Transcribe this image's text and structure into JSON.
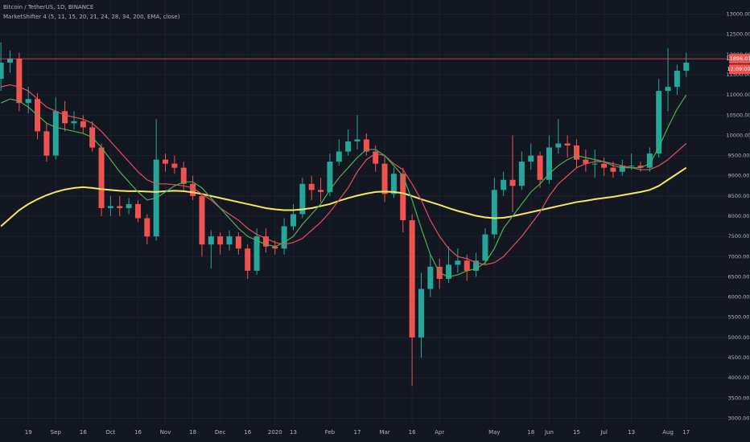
{
  "chart_data": {
    "type": "candlestick",
    "title": "Bitcoin / TetherUS, 1D, BINANCE",
    "subtitle": "MarketShifter 4 (5, 11, 15, 20, 21, 24, 28, 34, 200, EMA, close)",
    "categories": [
      null,
      null,
      null,
      "19",
      null,
      null,
      "Sep",
      null,
      null,
      "16",
      null,
      null,
      "Oct",
      null,
      null,
      "16",
      null,
      null,
      "Nov",
      null,
      null,
      "18",
      null,
      null,
      "Dec",
      null,
      null,
      "16",
      null,
      null,
      "2020",
      null,
      "13",
      null,
      null,
      null,
      "Feb",
      null,
      null,
      "17",
      null,
      null,
      "Mar",
      null,
      null,
      "16",
      null,
      null,
      "Apr",
      null,
      null,
      null,
      null,
      null,
      "May",
      null,
      null,
      null,
      "18",
      null,
      "Jun",
      null,
      null,
      "15",
      null,
      null,
      "Jul",
      null,
      null,
      "13",
      null,
      null,
      null,
      "Aug",
      null,
      "17"
    ],
    "open": [
      11400,
      11800,
      11900,
      10800,
      10900,
      10100,
      9500,
      10600,
      10300,
      10350,
      10200,
      9700,
      8200,
      8250,
      8200,
      8300,
      7950,
      7500,
      9400,
      9300,
      9200,
      8800,
      8500,
      7300,
      7500,
      7300,
      7500,
      7200,
      6650,
      7500,
      7250,
      7200,
      7750,
      8050,
      8800,
      8650,
      8600,
      9350,
      9600,
      9850,
      9900,
      9600,
      9300,
      8550,
      9050,
      7900,
      5000,
      6200,
      6750,
      6450,
      6800,
      6900,
      6650,
      6900,
      7550,
      8650,
      8900,
      8750,
      9350,
      9500,
      8900,
      9700,
      9800,
      9750,
      9400,
      9300,
      9300,
      9200,
      9100,
      9250,
      9250,
      9200,
      9550,
      11100,
      11200,
      11600
    ],
    "high": [
      12300,
      12100,
      12050,
      11200,
      11050,
      10300,
      10950,
      10850,
      10600,
      10500,
      10350,
      9800,
      8500,
      8500,
      8450,
      8400,
      8050,
      10400,
      9550,
      9500,
      9350,
      9000,
      8550,
      7650,
      7600,
      7650,
      7600,
      7300,
      7700,
      7700,
      7400,
      7950,
      8300,
      8950,
      9000,
      8950,
      9550,
      9900,
      10150,
      10500,
      10050,
      9750,
      9500,
      9200,
      9200,
      8050,
      6600,
      7050,
      6950,
      7250,
      7200,
      7050,
      7100,
      7700,
      8950,
      9100,
      10000,
      9600,
      9800,
      9600,
      10000,
      10400,
      10000,
      9900,
      9650,
      9650,
      9450,
      9350,
      9400,
      9550,
      9350,
      9700,
      11400,
      12150,
      11750,
      12050
    ],
    "low": [
      11100,
      11550,
      10600,
      10550,
      9900,
      9350,
      9400,
      10100,
      10150,
      10050,
      9600,
      8000,
      8000,
      8000,
      8050,
      7850,
      7300,
      7400,
      9100,
      9050,
      8650,
      8400,
      7000,
      6700,
      7050,
      7150,
      7050,
      6450,
      6550,
      7100,
      7050,
      7050,
      7650,
      7950,
      8400,
      8350,
      8500,
      9250,
      9500,
      9650,
      9500,
      9100,
      8350,
      8450,
      7600,
      3800,
      4500,
      6000,
      6200,
      6350,
      6600,
      6400,
      6500,
      6800,
      7450,
      8500,
      8100,
      8650,
      9150,
      8700,
      8800,
      9550,
      9450,
      9200,
      9100,
      8950,
      9000,
      8950,
      9000,
      9150,
      9100,
      9100,
      9450,
      10600,
      11000,
      11450
    ],
    "close": [
      11800,
      11900,
      10800,
      10900,
      10100,
      9500,
      10600,
      10300,
      10350,
      10200,
      9700,
      8200,
      8250,
      8200,
      8300,
      7950,
      7500,
      9400,
      9300,
      9200,
      8800,
      8500,
      7300,
      7500,
      7300,
      7500,
      7200,
      6650,
      7500,
      7250,
      7200,
      7750,
      8050,
      8800,
      8650,
      8600,
      9350,
      9600,
      9850,
      9900,
      9600,
      9300,
      8550,
      9050,
      7900,
      5000,
      6200,
      6750,
      6450,
      6800,
      6900,
      6650,
      6900,
      7550,
      8650,
      8900,
      8750,
      9350,
      9500,
      8900,
      9700,
      9800,
      9750,
      9400,
      9300,
      9300,
      9200,
      9100,
      9250,
      9250,
      9200,
      9550,
      11100,
      11200,
      11600,
      11800
    ],
    "up_color": "#26a69a",
    "down_color": "#ef5350",
    "overlays": [
      {
        "color": "#f5e663",
        "values": [
          7750,
          7950,
          8150,
          8300,
          8420,
          8520,
          8600,
          8660,
          8700,
          8720,
          8700,
          8670,
          8650,
          8630,
          8620,
          8620,
          8610,
          8600,
          8620,
          8630,
          8620,
          8590,
          8550,
          8500,
          8450,
          8400,
          8350,
          8300,
          8250,
          8200,
          8170,
          8150,
          8150,
          8170,
          8200,
          8250,
          8300,
          8380,
          8450,
          8510,
          8560,
          8600,
          8610,
          8600,
          8570,
          8500,
          8420,
          8350,
          8280,
          8200,
          8130,
          8070,
          8010,
          7970,
          7950,
          7960,
          8000,
          8050,
          8100,
          8150,
          8200,
          8250,
          8300,
          8350,
          8380,
          8420,
          8450,
          8480,
          8520,
          8560,
          8600,
          8650,
          8750,
          8900,
          9050,
          9200
        ]
      },
      {
        "color": "#e04f5f",
        "values": [
          11200,
          11250,
          11200,
          11100,
          10900,
          10700,
          10600,
          10500,
          10450,
          10400,
          10300,
          10100,
          9850,
          9600,
          9350,
          9100,
          8900,
          8800,
          8800,
          8780,
          8750,
          8700,
          8550,
          8400,
          8200,
          8050,
          7900,
          7700,
          7550,
          7450,
          7350,
          7300,
          7350,
          7450,
          7650,
          7850,
          8100,
          8400,
          8700,
          9100,
          9400,
          9550,
          9500,
          9300,
          9150,
          8800,
          8400,
          7900,
          7500,
          7200,
          7000,
          6950,
          6850,
          6800,
          6850,
          7000,
          7250,
          7500,
          7800,
          8100,
          8500,
          8800,
          9000,
          9200,
          9300,
          9350,
          9350,
          9300,
          9250,
          9200,
          9150,
          9150,
          9250,
          9400,
          9600,
          9800
        ]
      },
      {
        "color": "#4caf50",
        "values": [
          10800,
          10900,
          10850,
          10700,
          10500,
          10300,
          10200,
          10150,
          10100,
          10050,
          9950,
          9700,
          9400,
          9100,
          8850,
          8600,
          8400,
          8450,
          8600,
          8750,
          8850,
          8850,
          8700,
          8450,
          8200,
          7950,
          7700,
          7500,
          7400,
          7300,
          7250,
          7350,
          7500,
          7800,
          8050,
          8300,
          8650,
          8950,
          9200,
          9450,
          9650,
          9650,
          9500,
          9250,
          9000,
          8400,
          7700,
          7050,
          6600,
          6500,
          6550,
          6650,
          6700,
          6850,
          7200,
          7700,
          8000,
          8300,
          8600,
          8800,
          9050,
          9250,
          9400,
          9500,
          9450,
          9400,
          9350,
          9250,
          9200,
          9200,
          9200,
          9300,
          9700,
          10200,
          10650,
          11000
        ]
      }
    ],
    "last_price": 11896.01,
    "countdown": "12:09:00",
    "ylim": [
      2850,
      13350
    ],
    "yticks": [
      {
        "value": 3000,
        "label": "3000.00"
      },
      {
        "value": 3500,
        "label": "3500.00"
      },
      {
        "value": 4000,
        "label": "4000.00"
      },
      {
        "value": 4500,
        "label": "4500.00"
      },
      {
        "value": 5000,
        "label": "5000.00"
      },
      {
        "value": 5500,
        "label": "5500.00"
      },
      {
        "value": 6000,
        "label": "6000.00"
      },
      {
        "value": 6500,
        "label": "6500.00"
      },
      {
        "value": 7000,
        "label": "7000.00"
      },
      {
        "value": 7500,
        "label": "7500.00"
      },
      {
        "value": 8000,
        "label": "8000.00"
      },
      {
        "value": 8500,
        "label": "8500.00"
      },
      {
        "value": 9000,
        "label": "9000.00"
      },
      {
        "value": 9500,
        "label": "9500.00"
      },
      {
        "value": 10000,
        "label": "10000.00"
      },
      {
        "value": 10500,
        "label": "10500.00"
      },
      {
        "value": 11000,
        "label": "11000.00"
      },
      {
        "value": 11500,
        "label": "11500.00"
      },
      {
        "value": 12000,
        "label": "12000.00"
      },
      {
        "value": 12500,
        "label": "12500.00"
      },
      {
        "value": 13000,
        "label": "13000.00"
      }
    ],
    "grid": true
  }
}
